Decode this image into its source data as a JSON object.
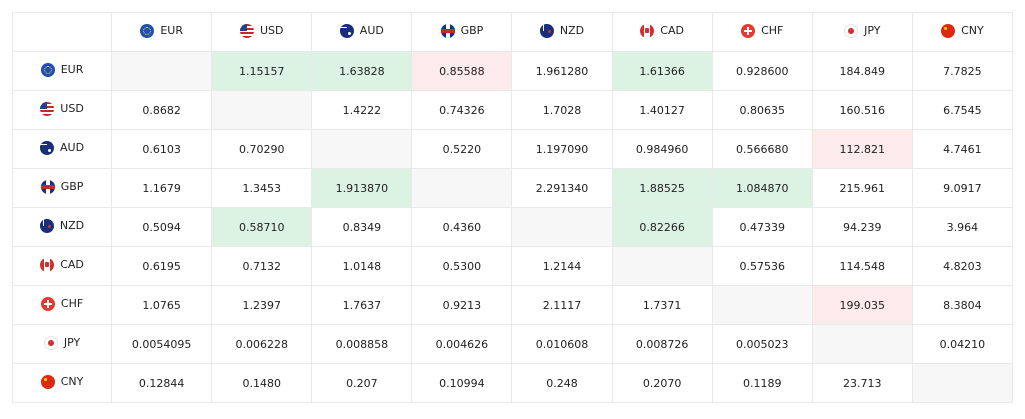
{
  "currencies": [
    {
      "code": "EUR",
      "icon": "eu-flag-icon"
    },
    {
      "code": "USD",
      "icon": "us-flag-icon"
    },
    {
      "code": "AUD",
      "icon": "australia-flag-icon"
    },
    {
      "code": "GBP",
      "icon": "uk-flag-icon"
    },
    {
      "code": "NZD",
      "icon": "new-zealand-flag-icon"
    },
    {
      "code": "CAD",
      "icon": "canada-flag-icon"
    },
    {
      "code": "CHF",
      "icon": "switzerland-flag-icon"
    },
    {
      "code": "JPY",
      "icon": "japan-flag-icon"
    },
    {
      "code": "CNY",
      "icon": "china-flag-icon"
    }
  ],
  "colors": {
    "up": "#dcf3e4",
    "down": "#fdeaea",
    "self": "#f7f7f7"
  },
  "rows": [
    {
      "code": "EUR",
      "cells": [
        {
          "value": "",
          "state": "self"
        },
        {
          "value": "1.15157",
          "state": "up"
        },
        {
          "value": "1.63828",
          "state": "up"
        },
        {
          "value": "0.85588",
          "state": "down"
        },
        {
          "value": "1.961280",
          "state": ""
        },
        {
          "value": "1.61366",
          "state": "up"
        },
        {
          "value": "0.928600",
          "state": ""
        },
        {
          "value": "184.849",
          "state": ""
        },
        {
          "value": "7.7825",
          "state": ""
        }
      ]
    },
    {
      "code": "USD",
      "cells": [
        {
          "value": "0.8682",
          "state": ""
        },
        {
          "value": "",
          "state": "self"
        },
        {
          "value": "1.4222",
          "state": ""
        },
        {
          "value": "0.74326",
          "state": ""
        },
        {
          "value": "1.7028",
          "state": ""
        },
        {
          "value": "1.40127",
          "state": ""
        },
        {
          "value": "0.80635",
          "state": ""
        },
        {
          "value": "160.516",
          "state": ""
        },
        {
          "value": "6.7545",
          "state": ""
        }
      ]
    },
    {
      "code": "AUD",
      "cells": [
        {
          "value": "0.6103",
          "state": ""
        },
        {
          "value": "0.70290",
          "state": ""
        },
        {
          "value": "",
          "state": "self"
        },
        {
          "value": "0.5220",
          "state": ""
        },
        {
          "value": "1.197090",
          "state": ""
        },
        {
          "value": "0.984960",
          "state": ""
        },
        {
          "value": "0.566680",
          "state": ""
        },
        {
          "value": "112.821",
          "state": "down"
        },
        {
          "value": "4.7461",
          "state": ""
        }
      ]
    },
    {
      "code": "GBP",
      "cells": [
        {
          "value": "1.1679",
          "state": ""
        },
        {
          "value": "1.3453",
          "state": ""
        },
        {
          "value": "1.913870",
          "state": "up"
        },
        {
          "value": "",
          "state": "self"
        },
        {
          "value": "2.291340",
          "state": ""
        },
        {
          "value": "1.88525",
          "state": "up"
        },
        {
          "value": "1.084870",
          "state": "up"
        },
        {
          "value": "215.961",
          "state": ""
        },
        {
          "value": "9.0917",
          "state": ""
        }
      ]
    },
    {
      "code": "NZD",
      "cells": [
        {
          "value": "0.5094",
          "state": ""
        },
        {
          "value": "0.58710",
          "state": "up"
        },
        {
          "value": "0.8349",
          "state": ""
        },
        {
          "value": "0.4360",
          "state": ""
        },
        {
          "value": "",
          "state": "self"
        },
        {
          "value": "0.82266",
          "state": "up"
        },
        {
          "value": "0.47339",
          "state": ""
        },
        {
          "value": "94.239",
          "state": ""
        },
        {
          "value": "3.964",
          "state": ""
        }
      ]
    },
    {
      "code": "CAD",
      "cells": [
        {
          "value": "0.6195",
          "state": ""
        },
        {
          "value": "0.7132",
          "state": ""
        },
        {
          "value": "1.0148",
          "state": ""
        },
        {
          "value": "0.5300",
          "state": ""
        },
        {
          "value": "1.2144",
          "state": ""
        },
        {
          "value": "",
          "state": "self"
        },
        {
          "value": "0.57536",
          "state": ""
        },
        {
          "value": "114.548",
          "state": ""
        },
        {
          "value": "4.8203",
          "state": ""
        }
      ]
    },
    {
      "code": "CHF",
      "cells": [
        {
          "value": "1.0765",
          "state": ""
        },
        {
          "value": "1.2397",
          "state": ""
        },
        {
          "value": "1.7637",
          "state": ""
        },
        {
          "value": "0.9213",
          "state": ""
        },
        {
          "value": "2.1117",
          "state": ""
        },
        {
          "value": "1.7371",
          "state": ""
        },
        {
          "value": "",
          "state": "self"
        },
        {
          "value": "199.035",
          "state": "down"
        },
        {
          "value": "8.3804",
          "state": ""
        }
      ]
    },
    {
      "code": "JPY",
      "cells": [
        {
          "value": "0.0054095",
          "state": ""
        },
        {
          "value": "0.006228",
          "state": ""
        },
        {
          "value": "0.008858",
          "state": ""
        },
        {
          "value": "0.004626",
          "state": ""
        },
        {
          "value": "0.010608",
          "state": ""
        },
        {
          "value": "0.008726",
          "state": ""
        },
        {
          "value": "0.005023",
          "state": ""
        },
        {
          "value": "",
          "state": "self"
        },
        {
          "value": "0.04210",
          "state": ""
        }
      ]
    },
    {
      "code": "CNY",
      "cells": [
        {
          "value": "0.12844",
          "state": ""
        },
        {
          "value": "0.1480",
          "state": ""
        },
        {
          "value": "0.207",
          "state": ""
        },
        {
          "value": "0.10994",
          "state": ""
        },
        {
          "value": "0.248",
          "state": ""
        },
        {
          "value": "0.2070",
          "state": ""
        },
        {
          "value": "0.1189",
          "state": ""
        },
        {
          "value": "23.713",
          "state": ""
        },
        {
          "value": "",
          "state": "self"
        }
      ]
    }
  ]
}
